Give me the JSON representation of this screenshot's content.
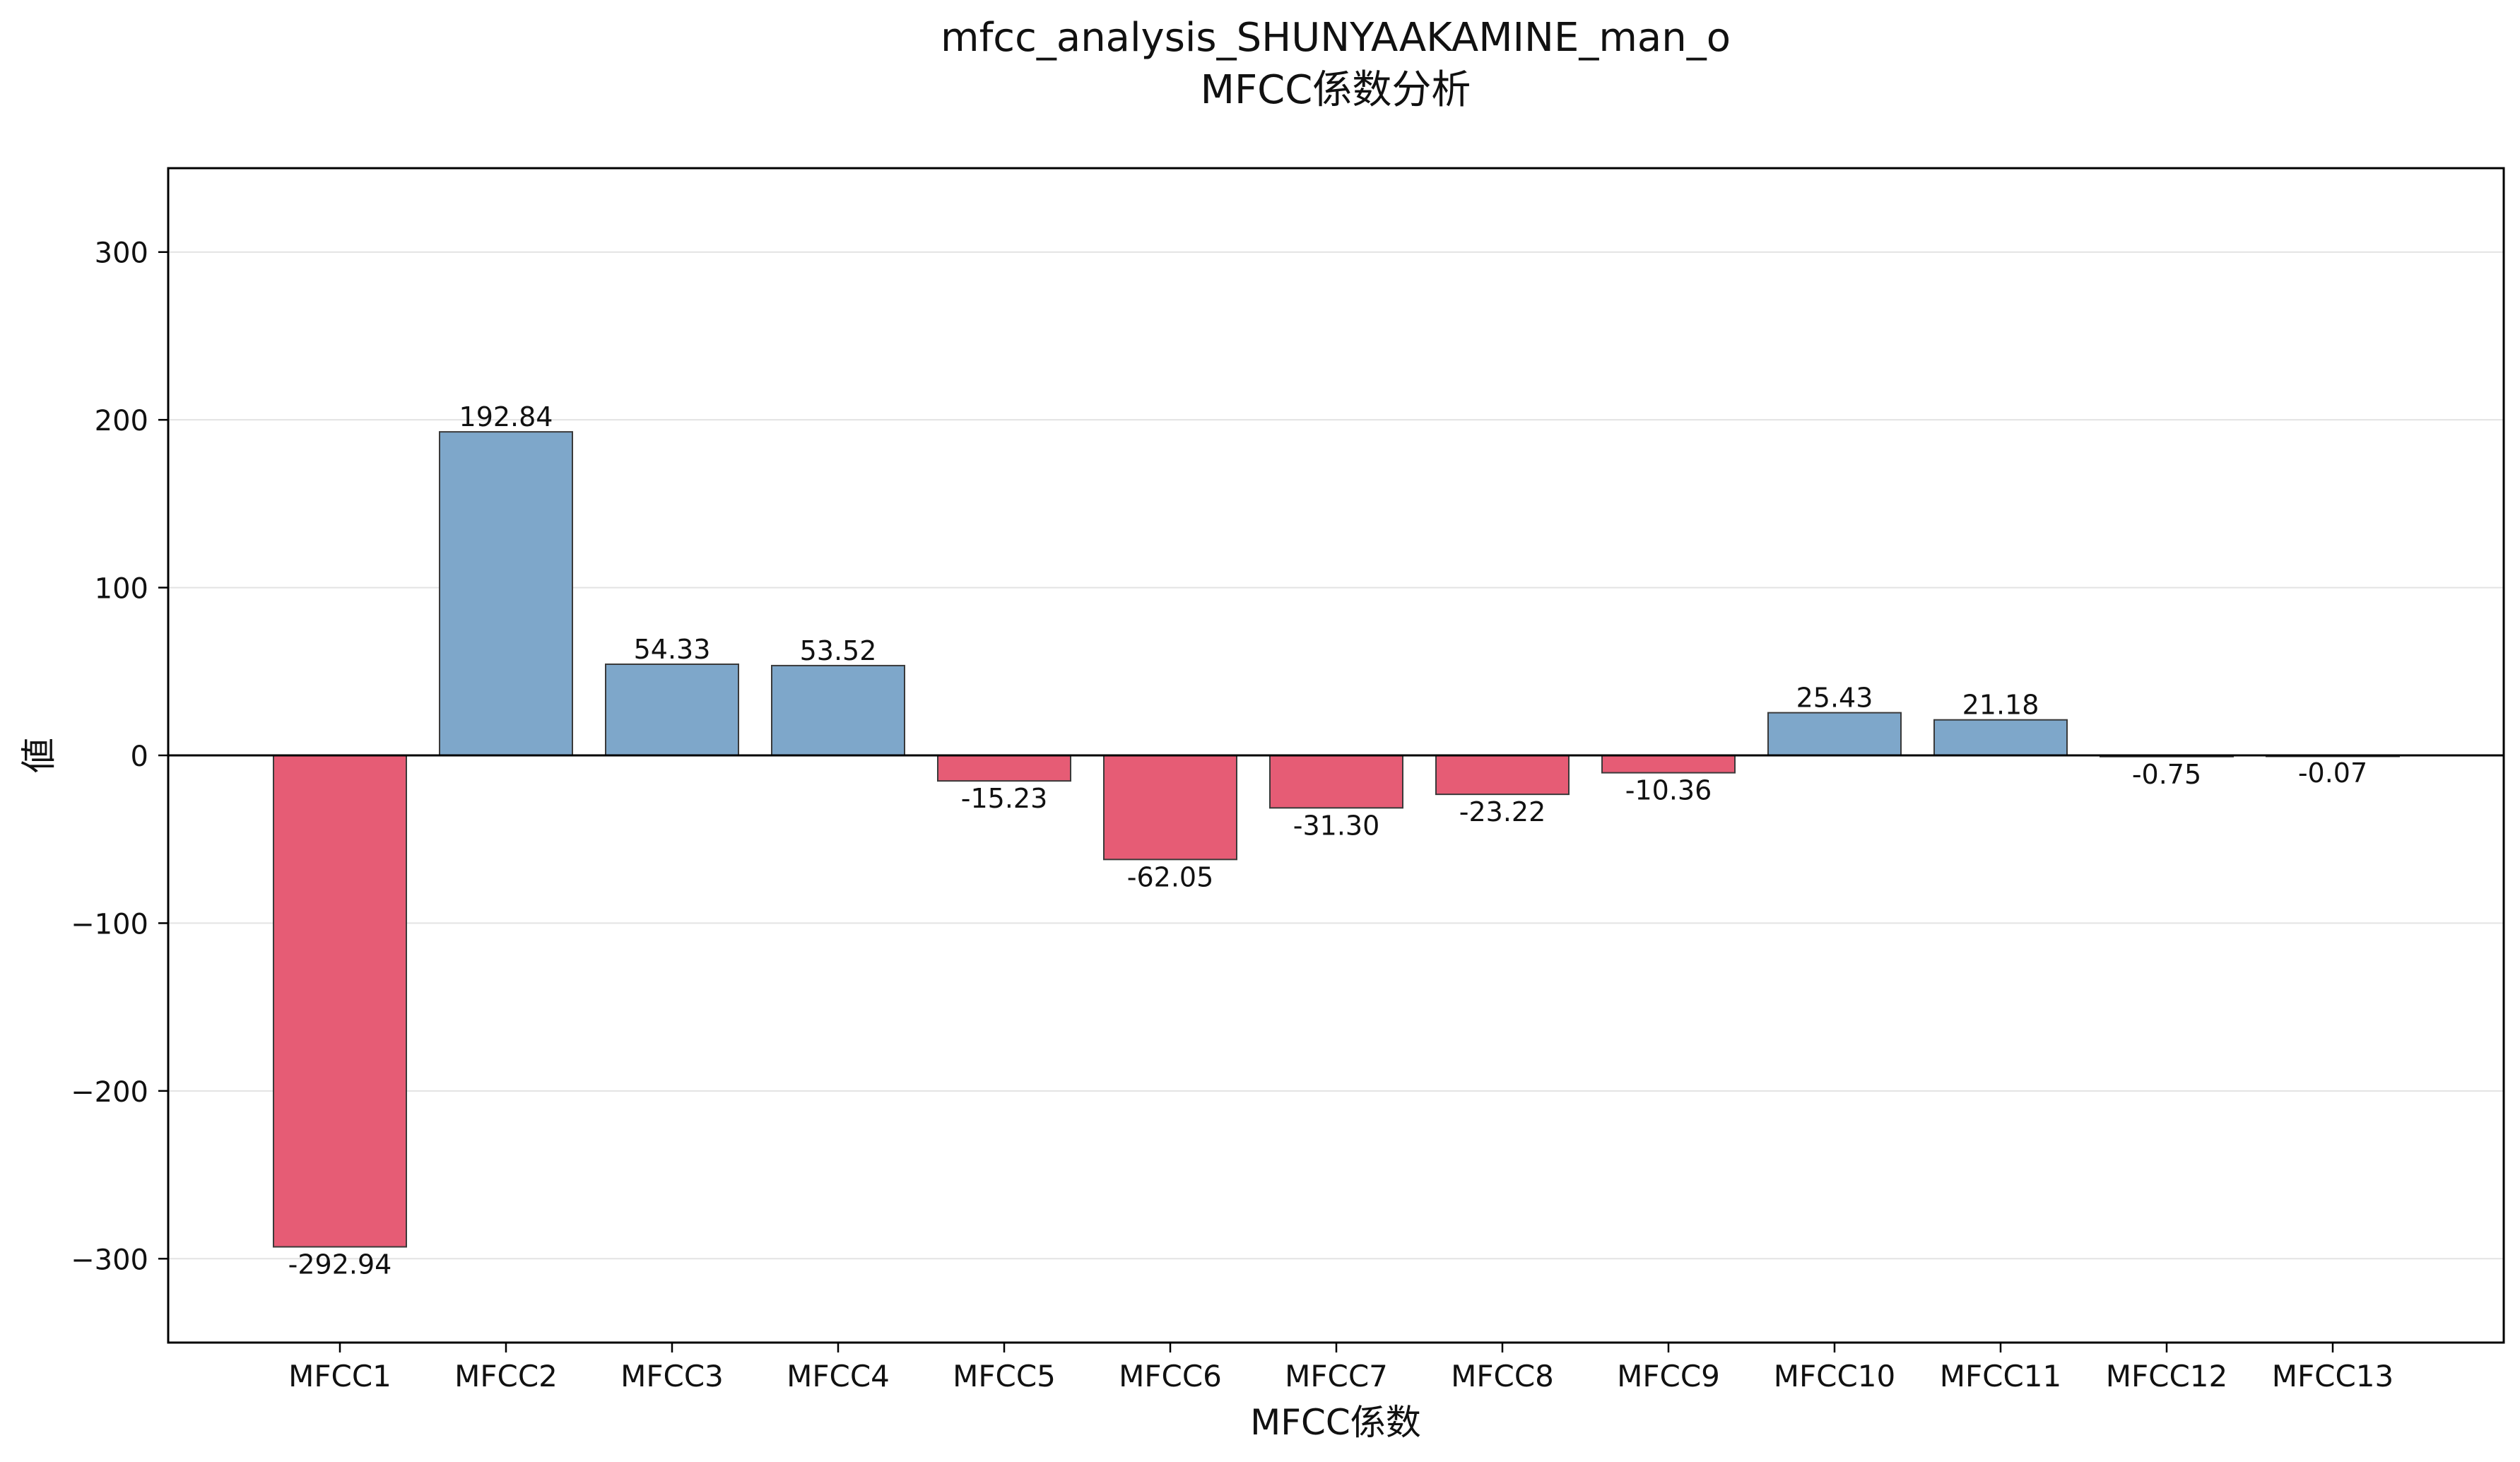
{
  "chart_data": {
    "type": "bar",
    "title": "mfcc_analysis_SHUNYAAKAMINE_man_o",
    "subtitle": "MFCC係数分析",
    "xlabel": "MFCC係数",
    "ylabel": "値",
    "ylim": [
      -350,
      350
    ],
    "yticks": [
      300,
      200,
      100,
      0,
      -100,
      -200,
      -300
    ],
    "ytick_labels": [
      "300",
      "200",
      "100",
      "0",
      "−100",
      "−200",
      "−300"
    ],
    "grid": "horizontal",
    "categories": [
      "MFCC1",
      "MFCC2",
      "MFCC3",
      "MFCC4",
      "MFCC5",
      "MFCC6",
      "MFCC7",
      "MFCC8",
      "MFCC9",
      "MFCC10",
      "MFCC11",
      "MFCC12",
      "MFCC13"
    ],
    "values": [
      -292.94,
      192.84,
      54.33,
      53.52,
      -15.23,
      -62.05,
      -31.3,
      -23.22,
      -10.36,
      25.43,
      21.18,
      -0.75,
      -0.07
    ],
    "value_labels": [
      "-292.94",
      "192.84",
      "54.33",
      "53.52",
      "-15.23",
      "-62.05",
      "-31.30",
      "-23.22",
      "-10.36",
      "25.43",
      "21.18",
      "-0.75",
      "-0.07"
    ],
    "colors": {
      "positive": "#7ea7ca",
      "negative": "#e65c75",
      "bar_edge": "#3a3a3a",
      "grid": "#e3e3e3",
      "zero_line": "#000000"
    }
  }
}
